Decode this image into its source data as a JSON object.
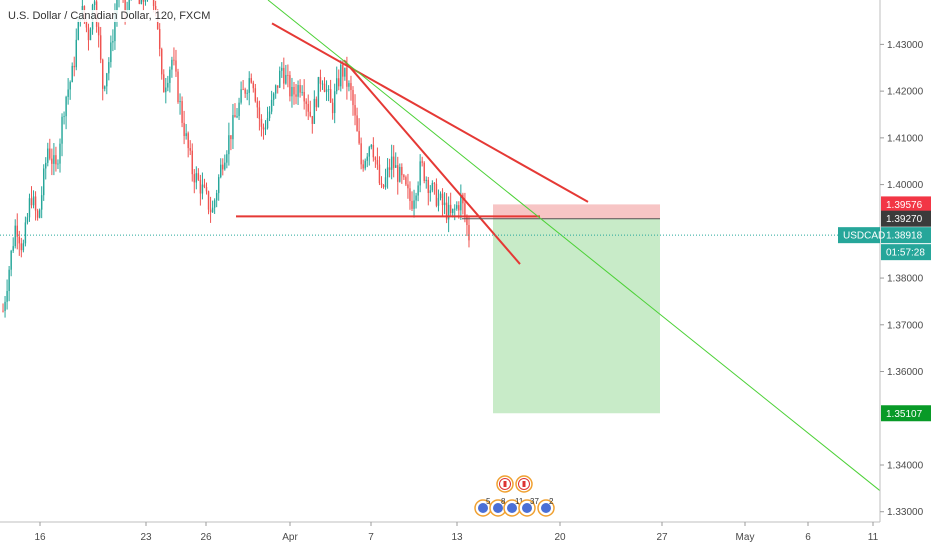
{
  "chart_title": "U.S. Dollar / Canadian Dollar, 120, FXCM",
  "colors": {
    "up": "#26a69a",
    "down": "#ef5350",
    "trendline_red": "#e53935",
    "trendline_green": "#4cd137",
    "stop_zone": "#f7c5c5",
    "target_zone": "#c8ebc8",
    "current_price": "#26a69a",
    "stop_label": "#f23645",
    "entry_label": "#3b3b3b",
    "target_label": "#089a27"
  },
  "price_labels": {
    "stop": "1.39576",
    "entry": "1.39270",
    "current_symbol": "USDCAD",
    "current": "1.38918",
    "countdown": "01:57:28",
    "target": "1.35107"
  },
  "events": {
    "counts": [
      "5",
      "8",
      "11",
      "37",
      "2"
    ]
  },
  "chart_data": {
    "type": "candlestick",
    "title": "U.S. Dollar / Canadian Dollar, 120, FXCM",
    "x_ticks": [
      "16",
      "23",
      "26",
      "Apr",
      "7",
      "13",
      "20",
      "27",
      "May",
      "6",
      "11"
    ],
    "y_ticks": [
      "1.43000",
      "1.42000",
      "1.41000",
      "1.40000",
      "1.38000",
      "1.37000",
      "1.36000",
      "1.34000",
      "1.33000"
    ],
    "ylim": [
      1.3278,
      1.4395
    ],
    "grid": false,
    "legend": "none",
    "price_path": [
      [
        0,
        1.373
      ],
      [
        0.6,
        1.382
      ],
      [
        1.3,
        1.392
      ],
      [
        2.0,
        1.386
      ],
      [
        2.8,
        1.398
      ],
      [
        3.5,
        1.392
      ],
      [
        4.5,
        1.408
      ],
      [
        5.3,
        1.403
      ],
      [
        6.2,
        1.418
      ],
      [
        7.0,
        1.424
      ],
      [
        7.8,
        1.438
      ],
      [
        8.6,
        1.432
      ],
      [
        9.2,
        1.441
      ],
      [
        10.0,
        1.421
      ],
      [
        10.8,
        1.428
      ],
      [
        11.6,
        1.443
      ],
      [
        12.4,
        1.436
      ],
      [
        13.1,
        1.447
      ],
      [
        13.8,
        1.437
      ],
      [
        14.6,
        1.444
      ],
      [
        15.4,
        1.438
      ],
      [
        16.0,
        1.42
      ],
      [
        17.0,
        1.427
      ],
      [
        18.0,
        1.414
      ],
      [
        19.0,
        1.403
      ],
      [
        20.0,
        1.399
      ],
      [
        21.0,
        1.394
      ],
      [
        22.0,
        1.405
      ],
      [
        23.0,
        1.412
      ],
      [
        24.0,
        1.419
      ],
      [
        25.0,
        1.424
      ],
      [
        26.0,
        1.411
      ],
      [
        27.0,
        1.417
      ],
      [
        28.0,
        1.425
      ],
      [
        29.0,
        1.419
      ],
      [
        30.0,
        1.422
      ],
      [
        31.0,
        1.414
      ],
      [
        32.0,
        1.424
      ],
      [
        33.0,
        1.416
      ],
      [
        34.0,
        1.425
      ],
      [
        35.0,
        1.419
      ],
      [
        36.0,
        1.404
      ],
      [
        37.0,
        1.41
      ],
      [
        38.0,
        1.398
      ],
      [
        39.0,
        1.405
      ],
      [
        40.0,
        1.401
      ],
      [
        41.0,
        1.396
      ],
      [
        42.0,
        1.404
      ],
      [
        43.0,
        1.399
      ],
      [
        44.0,
        1.396
      ],
      [
        45.0,
        1.393
      ],
      [
        46.0,
        1.397
      ],
      [
        46.8,
        1.389
      ]
    ],
    "candle_count": 230,
    "range_start_x": "Mar 13",
    "range_end_x": "Apr 14",
    "drawings": {
      "red_trendlines": [
        {
          "from": [
            "Mar 30",
            1.4345
          ],
          "to": [
            "Apr 22",
            1.3963
          ]
        },
        {
          "from": [
            "Apr 5",
            1.4266
          ],
          "to": [
            "Apr 18",
            1.383
          ]
        }
      ],
      "support_line": {
        "from": [
          "Mar 28",
          1.3932
        ],
        "to": [
          "Apr 20",
          1.3932
        ]
      },
      "green_trendline": {
        "from": [
          "Mar 28",
          1.4395
        ],
        "to": [
          "May 15",
          1.3345
        ]
      },
      "long_position": {
        "entry": 1.3927,
        "stop": 1.39576,
        "target": 1.35107,
        "start": "Apr 15",
        "end": "Apr 27"
      }
    },
    "price_markers": [
      1.39576,
      1.3927,
      1.38918,
      1.35107
    ]
  }
}
